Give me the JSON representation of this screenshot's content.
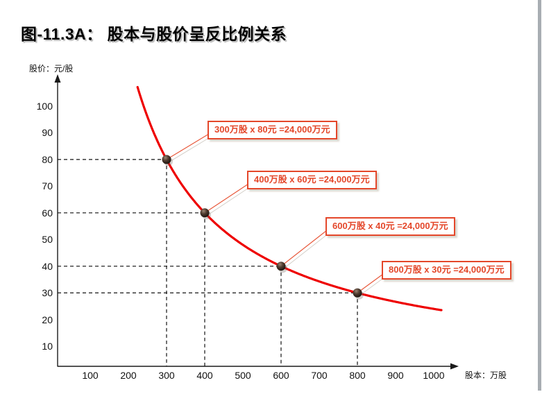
{
  "title": "图-11.3A： 股本与股价呈反比例关系",
  "chart_data": {
    "type": "line",
    "title": "图-11.3A： 股本与股价呈反比例关系",
    "xlabel": "股本：万股",
    "ylabel": "股价：元/股",
    "x_ticks": [
      100,
      200,
      300,
      400,
      500,
      600,
      700,
      800,
      900,
      1000
    ],
    "y_ticks": [
      10,
      20,
      30,
      40,
      50,
      60,
      70,
      80,
      90,
      100
    ],
    "xlim": [
      0,
      1050
    ],
    "ylim": [
      0,
      110
    ],
    "grid": "off (dashed guide lines only at data points)",
    "legend": "none",
    "curve": {
      "equation": "股价 = 24000 / 股本",
      "constant_product": 24000,
      "x_range": [
        224,
        1020
      ],
      "color": "#ee0000"
    },
    "points": [
      {
        "x": 300,
        "y": 80
      },
      {
        "x": 400,
        "y": 60
      },
      {
        "x": 600,
        "y": 40
      },
      {
        "x": 800,
        "y": 30
      }
    ],
    "annotations": [
      "300万股 x 80元 =24,000万元",
      "400万股 x 60元 =24,000万元",
      "600万股 x 40元 =24,000万元",
      "800万股 x 30元 =24,000万元"
    ]
  },
  "colors": {
    "curve_red": "#ee0000",
    "annotation_red": "#e4472a",
    "axis_black": "#1a1a1a",
    "scrollbar_gray": "#a8adb2"
  }
}
